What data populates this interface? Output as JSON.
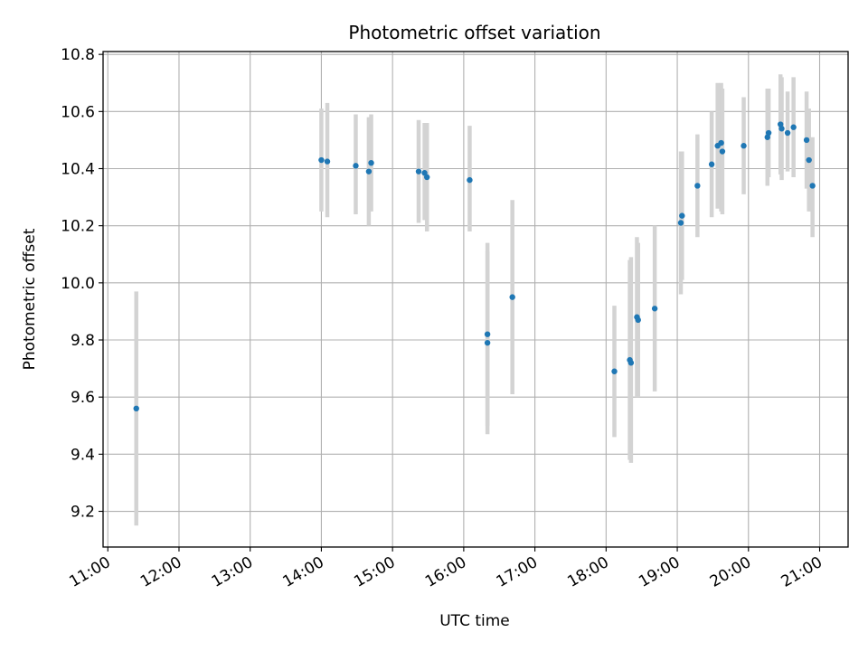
{
  "chart_data": {
    "type": "scatter",
    "title": "Photometric offset variation",
    "xlabel": "UTC time",
    "ylabel": "Photometric offset",
    "xlim": [
      "10:56",
      "21:24"
    ],
    "ylim": [
      9.075,
      10.81
    ],
    "grid": true,
    "x_ticks": [
      "11:00",
      "12:00",
      "13:00",
      "14:00",
      "15:00",
      "16:00",
      "17:00",
      "18:00",
      "19:00",
      "20:00",
      "21:00"
    ],
    "y_ticks": [
      9.2,
      9.4,
      9.6,
      9.8,
      10.0,
      10.2,
      10.4,
      10.6,
      10.8
    ],
    "y_tick_labels": [
      "9.2",
      "9.4",
      "9.6",
      "9.8",
      "10.0",
      "10.2",
      "10.4",
      "10.6",
      "10.8"
    ],
    "marker_color": "#1f77b4",
    "errorbar_color": "#d3d3d3",
    "series": [
      {
        "points": [
          {
            "t": "11:24",
            "y": 9.56,
            "lo": 9.15,
            "hi": 9.97
          },
          {
            "t": "14:00",
            "y": 10.43,
            "lo": 10.25,
            "hi": 10.61
          },
          {
            "t": "14:05",
            "y": 10.425,
            "lo": 10.23,
            "hi": 10.63
          },
          {
            "t": "14:29",
            "y": 10.41,
            "lo": 10.24,
            "hi": 10.59
          },
          {
            "t": "14:40",
            "y": 10.39,
            "lo": 10.2,
            "hi": 10.58
          },
          {
            "t": "14:42",
            "y": 10.42,
            "lo": 10.25,
            "hi": 10.59
          },
          {
            "t": "15:22",
            "y": 10.39,
            "lo": 10.21,
            "hi": 10.57
          },
          {
            "t": "15:27",
            "y": 10.385,
            "lo": 10.22,
            "hi": 10.56
          },
          {
            "t": "15:29",
            "y": 10.37,
            "lo": 10.18,
            "hi": 10.56
          },
          {
            "t": "16:05",
            "y": 10.36,
            "lo": 10.18,
            "hi": 10.55
          },
          {
            "t": "16:20",
            "y": 9.82,
            "lo": 9.5,
            "hi": 10.14
          },
          {
            "t": "16:20",
            "y": 9.79,
            "lo": 9.47,
            "hi": 10.11
          },
          {
            "t": "16:41",
            "y": 9.95,
            "lo": 9.61,
            "hi": 10.29
          },
          {
            "t": "18:07",
            "y": 9.69,
            "lo": 9.46,
            "hi": 9.92
          },
          {
            "t": "18:20",
            "y": 9.73,
            "lo": 9.38,
            "hi": 10.08
          },
          {
            "t": "18:21",
            "y": 9.72,
            "lo": 9.37,
            "hi": 10.09
          },
          {
            "t": "18:26",
            "y": 9.88,
            "lo": 9.6,
            "hi": 10.16
          },
          {
            "t": "18:27",
            "y": 9.87,
            "lo": 9.6,
            "hi": 10.14
          },
          {
            "t": "18:41",
            "y": 9.91,
            "lo": 9.62,
            "hi": 10.2
          },
          {
            "t": "19:03",
            "y": 10.21,
            "lo": 9.96,
            "hi": 10.46
          },
          {
            "t": "19:04",
            "y": 10.235,
            "lo": 10.01,
            "hi": 10.46
          },
          {
            "t": "19:17",
            "y": 10.34,
            "lo": 10.16,
            "hi": 10.52
          },
          {
            "t": "19:29",
            "y": 10.415,
            "lo": 10.23,
            "hi": 10.6
          },
          {
            "t": "19:34",
            "y": 10.48,
            "lo": 10.26,
            "hi": 10.7
          },
          {
            "t": "19:37",
            "y": 10.49,
            "lo": 10.25,
            "hi": 10.7
          },
          {
            "t": "19:38",
            "y": 10.46,
            "lo": 10.24,
            "hi": 10.68
          },
          {
            "t": "19:56",
            "y": 10.48,
            "lo": 10.31,
            "hi": 10.65
          },
          {
            "t": "20:16",
            "y": 10.51,
            "lo": 10.34,
            "hi": 10.68
          },
          {
            "t": "20:17",
            "y": 10.525,
            "lo": 10.37,
            "hi": 10.68
          },
          {
            "t": "20:27",
            "y": 10.555,
            "lo": 10.38,
            "hi": 10.73
          },
          {
            "t": "20:28",
            "y": 10.54,
            "lo": 10.36,
            "hi": 10.72
          },
          {
            "t": "20:33",
            "y": 10.525,
            "lo": 10.39,
            "hi": 10.67
          },
          {
            "t": "20:38",
            "y": 10.545,
            "lo": 10.37,
            "hi": 10.72
          },
          {
            "t": "20:49",
            "y": 10.5,
            "lo": 10.33,
            "hi": 10.67
          },
          {
            "t": "20:51",
            "y": 10.43,
            "lo": 10.25,
            "hi": 10.61
          },
          {
            "t": "20:54",
            "y": 10.34,
            "lo": 10.16,
            "hi": 10.51
          }
        ]
      }
    ]
  }
}
